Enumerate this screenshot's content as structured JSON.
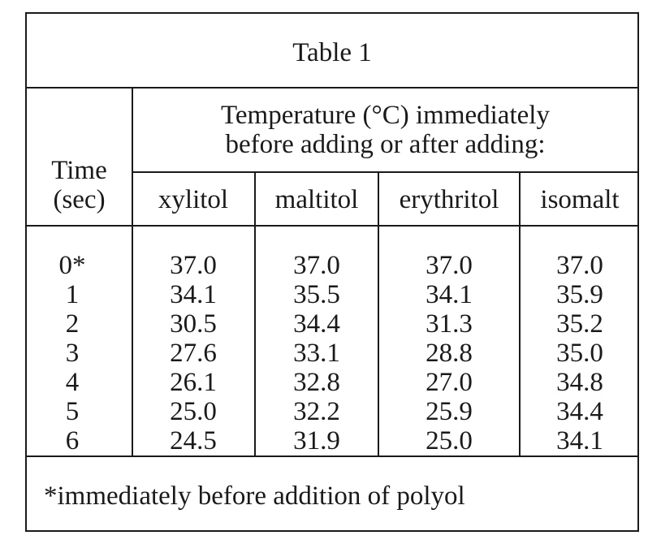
{
  "table": {
    "title": "Table 1",
    "row_header": [
      "Time",
      "(sec)"
    ],
    "group_header": [
      "Temperature (°C) immediately",
      "before adding or after adding:"
    ],
    "columns": [
      "xylitol",
      "maltitol",
      "erythritol",
      "isomalt"
    ],
    "time_values": [
      "0*",
      "1",
      "2",
      "3",
      "4",
      "5",
      "6"
    ],
    "data": {
      "xylitol": [
        "37.0",
        "34.1",
        "30.5",
        "27.6",
        "26.1",
        "25.0",
        "24.5"
      ],
      "maltitol": [
        "37.0",
        "35.5",
        "34.4",
        "33.1",
        "32.8",
        "32.2",
        "31.9"
      ],
      "erythritol": [
        "37.0",
        "34.1",
        "31.3",
        "28.8",
        "27.0",
        "25.9",
        "25.0"
      ],
      "isomalt": [
        "37.0",
        "35.9",
        "35.2",
        "35.0",
        "34.8",
        "34.4",
        "34.1"
      ]
    },
    "footnote": "*immediately before addition of polyol"
  }
}
